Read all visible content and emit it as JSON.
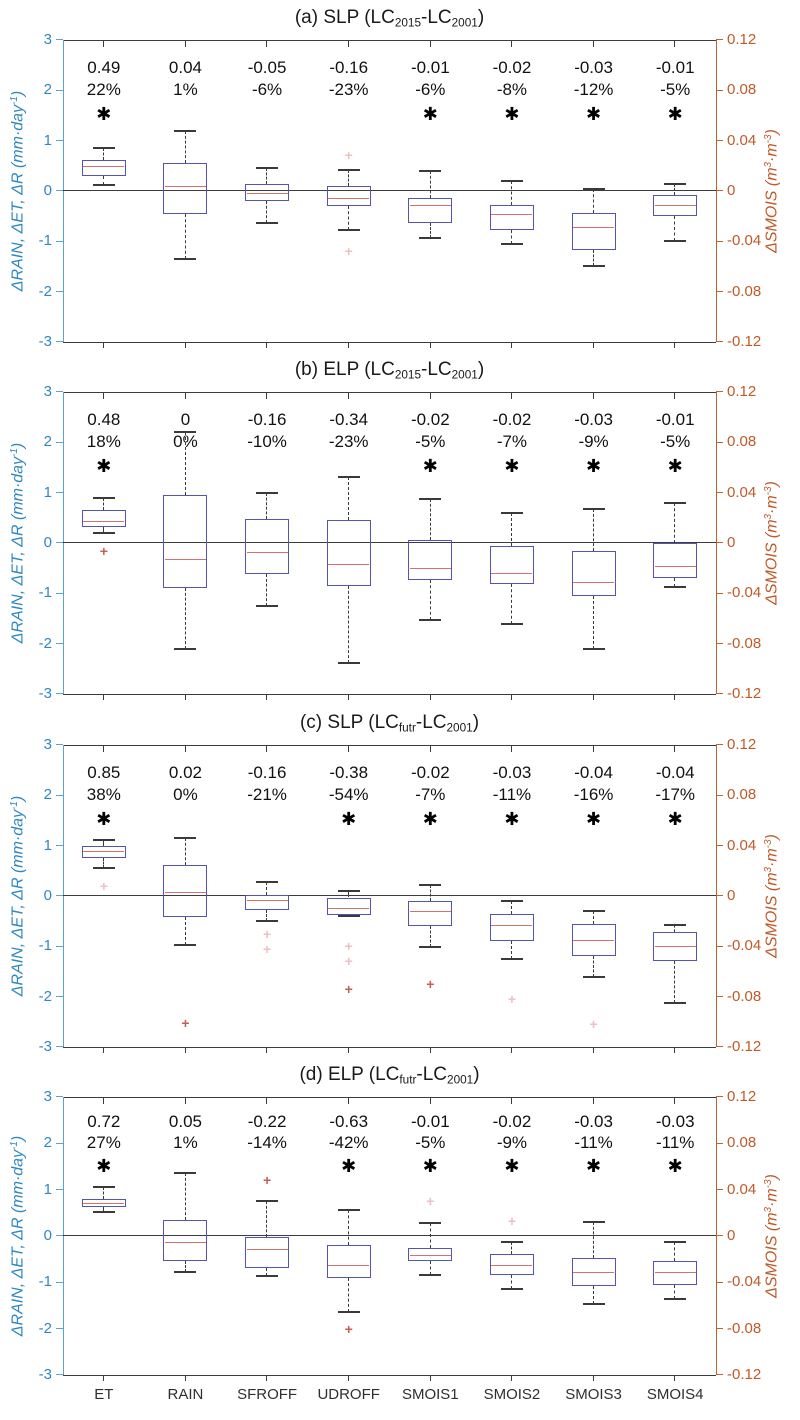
{
  "figure": {
    "categories": [
      "ET",
      "RAIN",
      "SFROFF",
      "UDROFF",
      "SMOIS1",
      "SMOIS2",
      "SMOIS3",
      "SMOIS4"
    ],
    "left_axis": {
      "label_parts": [
        [
          "t",
          "ΔRAIN, ΔET, ΔR (mm·day"
        ],
        [
          "sup",
          "-1"
        ],
        [
          "t",
          ")"
        ]
      ],
      "ticks": [
        "3",
        "2",
        "1",
        "0",
        "-1",
        "-2",
        "-3"
      ],
      "tick_values": [
        3,
        2,
        1,
        0,
        -1,
        -2,
        -3
      ],
      "text_color": "#2f88c0",
      "line_color": "#5ba3d0"
    },
    "right_axis": {
      "label_parts": [
        [
          "t",
          "ΔSMOIS (m"
        ],
        [
          "sup",
          "3"
        ],
        [
          "t",
          "·m"
        ],
        [
          "sup",
          "-3"
        ],
        [
          "t",
          ")"
        ]
      ],
      "ticks": [
        "0.12",
        "0.08",
        "0.04",
        "0",
        "-0.04",
        "-0.08",
        "-0.12"
      ],
      "text_color": "#c05a28",
      "line_color": "#c0622e"
    },
    "colors": {
      "frame": "#3c3c3c",
      "zero_line": "#3c3c3c",
      "box": "#5354b6",
      "median": "#d4716c",
      "whisker": "#3a3a3a",
      "outlier": "#cc5d52",
      "outlier_faint": "#eec0c4",
      "title_text": "#1a1a1a",
      "annotation_text": "#111111",
      "significance_marker": "✱"
    }
  },
  "chart_data": [
    {
      "type": "boxplot",
      "panel": "a",
      "title_parts": [
        [
          "t",
          "(a) SLP (LC"
        ],
        [
          "sub",
          "2015"
        ],
        [
          "t",
          "-LC"
        ],
        [
          "sub",
          "2001"
        ],
        [
          "t",
          ")"
        ]
      ],
      "ylim": [
        -3,
        3
      ],
      "y2lim": [
        -0.12,
        0.12
      ],
      "annotations": {
        "values": [
          "0.49",
          "0.04",
          "-0.05",
          "-0.16",
          "-0.01",
          "-0.02",
          "-0.03",
          "-0.01"
        ],
        "percents": [
          "22%",
          "1%",
          "-6%",
          "-23%",
          "-6%",
          "-8%",
          "-12%",
          "-5%"
        ],
        "significant": [
          true,
          false,
          false,
          false,
          true,
          true,
          true,
          true
        ]
      },
      "boxes": [
        {
          "whislo": 0.12,
          "q1": 0.3,
          "med": 0.47,
          "q3": 0.62,
          "whishi": 0.85,
          "outliers": [],
          "outliers_faint": []
        },
        {
          "whislo": -1.35,
          "q1": -0.45,
          "med": 0.08,
          "q3": 0.55,
          "whishi": 1.2,
          "outliers": [],
          "outliers_faint": []
        },
        {
          "whislo": -0.63,
          "q1": -0.2,
          "med": -0.05,
          "q3": 0.13,
          "whishi": 0.45,
          "outliers": [],
          "outliers_faint": []
        },
        {
          "whislo": -0.78,
          "q1": -0.3,
          "med": -0.15,
          "q3": 0.1,
          "whishi": 0.42,
          "outliers": [],
          "outliers_faint": [
            0.72,
            -1.2
          ]
        },
        {
          "whislo": -0.93,
          "q1": -0.63,
          "med": -0.3,
          "q3": -0.13,
          "whishi": 0.4,
          "outliers": [],
          "outliers_faint": []
        },
        {
          "whislo": -1.05,
          "q1": -0.78,
          "med": -0.48,
          "q3": -0.27,
          "whishi": 0.2,
          "outliers": [],
          "outliers_faint": []
        },
        {
          "whislo": -1.49,
          "q1": -1.18,
          "med": -0.74,
          "q3": -0.43,
          "whishi": 0.04,
          "outliers": [],
          "outliers_faint": []
        },
        {
          "whislo": -0.99,
          "q1": -0.5,
          "med": -0.3,
          "q3": -0.08,
          "whishi": 0.14,
          "outliers": [],
          "outliers_faint": []
        }
      ]
    },
    {
      "type": "boxplot",
      "panel": "b",
      "title_parts": [
        [
          "t",
          "(b) ELP (LC"
        ],
        [
          "sub",
          "2015"
        ],
        [
          "t",
          "-LC"
        ],
        [
          "sub",
          "2001"
        ],
        [
          "t",
          ")"
        ]
      ],
      "ylim": [
        -3,
        3
      ],
      "y2lim": [
        -0.12,
        0.12
      ],
      "annotations": {
        "values": [
          "0.48",
          "0",
          "-0.16",
          "-0.34",
          "-0.02",
          "-0.02",
          "-0.03",
          "-0.01"
        ],
        "percents": [
          "18%",
          "0%",
          "-10%",
          "-23%",
          "-5%",
          "-7%",
          "-9%",
          "-5%"
        ],
        "significant": [
          true,
          false,
          false,
          false,
          true,
          true,
          true,
          true
        ]
      },
      "boxes": [
        {
          "whislo": 0.2,
          "q1": 0.32,
          "med": 0.42,
          "q3": 0.65,
          "whishi": 0.9,
          "outliers": [
            -0.15
          ],
          "outliers_faint": []
        },
        {
          "whislo": -2.1,
          "q1": -0.9,
          "med": -0.33,
          "q3": 0.95,
          "whishi": 2.2,
          "outliers": [],
          "outliers_faint": []
        },
        {
          "whislo": -1.25,
          "q1": -0.62,
          "med": -0.2,
          "q3": 0.48,
          "whishi": 1.0,
          "outliers": [],
          "outliers_faint": []
        },
        {
          "whislo": -2.38,
          "q1": -0.85,
          "med": -0.43,
          "q3": 0.45,
          "whishi": 1.31,
          "outliers": [],
          "outliers_faint": []
        },
        {
          "whislo": -1.53,
          "q1": -0.73,
          "med": -0.52,
          "q3": 0.05,
          "whishi": 0.87,
          "outliers": [],
          "outliers_faint": []
        },
        {
          "whislo": -1.6,
          "q1": -0.82,
          "med": -0.62,
          "q3": -0.05,
          "whishi": 0.6,
          "outliers": [],
          "outliers_faint": []
        },
        {
          "whislo": -2.1,
          "q1": -1.05,
          "med": -0.8,
          "q3": -0.15,
          "whishi": 0.68,
          "outliers": [],
          "outliers_faint": []
        },
        {
          "whislo": -0.88,
          "q1": -0.7,
          "med": -0.48,
          "q3": 0.0,
          "whishi": 0.8,
          "outliers": [],
          "outliers_faint": []
        }
      ]
    },
    {
      "type": "boxplot",
      "panel": "c",
      "title_parts": [
        [
          "t",
          "(c) SLP (LC"
        ],
        [
          "sub",
          "futr"
        ],
        [
          "t",
          "-LC"
        ],
        [
          "sub",
          "2001"
        ],
        [
          "t",
          ")"
        ]
      ],
      "ylim": [
        -3,
        3
      ],
      "y2lim": [
        -0.12,
        0.12
      ],
      "annotations": {
        "values": [
          "0.85",
          "0.02",
          "-0.16",
          "-0.38",
          "-0.02",
          "-0.03",
          "-0.04",
          "-0.04"
        ],
        "percents": [
          "38%",
          "0%",
          "-21%",
          "-54%",
          "-7%",
          "-11%",
          "-16%",
          "-17%"
        ],
        "significant": [
          true,
          false,
          false,
          true,
          true,
          true,
          true,
          true
        ]
      },
      "boxes": [
        {
          "whislo": 0.55,
          "q1": 0.75,
          "med": 0.88,
          "q3": 1.0,
          "whishi": 1.12,
          "outliers": [],
          "outliers_faint": [
            0.2
          ]
        },
        {
          "whislo": -0.97,
          "q1": -0.42,
          "med": 0.07,
          "q3": 0.62,
          "whishi": 1.15,
          "outliers": [
            -2.52
          ],
          "outliers_faint": []
        },
        {
          "whislo": -0.5,
          "q1": -0.28,
          "med": -0.1,
          "q3": 0.02,
          "whishi": 0.27,
          "outliers": [],
          "outliers_faint": [
            -0.75,
            -1.05
          ]
        },
        {
          "whislo": -0.4,
          "q1": -0.38,
          "med": -0.26,
          "q3": -0.03,
          "whishi": 0.1,
          "outliers": [
            -1.85
          ],
          "outliers_faint": [
            -1.0,
            -1.3
          ]
        },
        {
          "whislo": -1.02,
          "q1": -0.6,
          "med": -0.32,
          "q3": -0.1,
          "whishi": 0.22,
          "outliers": [
            -1.75
          ],
          "outliers_faint": []
        },
        {
          "whislo": -1.25,
          "q1": -0.9,
          "med": -0.6,
          "q3": -0.35,
          "whishi": -0.1,
          "outliers": [],
          "outliers_faint": [
            -2.05
          ]
        },
        {
          "whislo": -1.6,
          "q1": -1.2,
          "med": -0.9,
          "q3": -0.55,
          "whishi": -0.3,
          "outliers": [],
          "outliers_faint": [
            -2.55
          ]
        },
        {
          "whislo": -2.12,
          "q1": -1.3,
          "med": -1.02,
          "q3": -0.72,
          "whishi": -0.58,
          "outliers": [],
          "outliers_faint": []
        }
      ]
    },
    {
      "type": "boxplot",
      "panel": "d",
      "title_parts": [
        [
          "t",
          "(d) ELP (LC"
        ],
        [
          "sub",
          "futr"
        ],
        [
          "t",
          "-LC"
        ],
        [
          "sub",
          "2001"
        ],
        [
          "t",
          ")"
        ]
      ],
      "ylim": [
        -3,
        3
      ],
      "y2lim": [
        -0.12,
        0.12
      ],
      "annotations": {
        "values": [
          "0.72",
          "0.05",
          "-0.22",
          "-0.63",
          "-0.01",
          "-0.02",
          "-0.03",
          "-0.03"
        ],
        "percents": [
          "27%",
          "1%",
          "-14%",
          "-42%",
          "-5%",
          "-9%",
          "-11%",
          "-11%"
        ],
        "significant": [
          true,
          false,
          false,
          true,
          true,
          true,
          true,
          true
        ]
      },
      "boxes": [
        {
          "whislo": 0.52,
          "q1": 0.62,
          "med": 0.7,
          "q3": 0.8,
          "whishi": 1.05,
          "outliers": [],
          "outliers_faint": []
        },
        {
          "whislo": -0.78,
          "q1": -0.55,
          "med": -0.15,
          "q3": 0.35,
          "whishi": 1.35,
          "outliers": [],
          "outliers_faint": []
        },
        {
          "whislo": -0.87,
          "q1": -0.7,
          "med": -0.3,
          "q3": -0.02,
          "whishi": 0.75,
          "outliers": [
            1.2
          ],
          "outliers_faint": []
        },
        {
          "whislo": -1.65,
          "q1": -0.9,
          "med": -0.65,
          "q3": -0.2,
          "whishi": 0.57,
          "outliers": [
            -2.0
          ],
          "outliers_faint": []
        },
        {
          "whislo": -0.85,
          "q1": -0.55,
          "med": -0.42,
          "q3": -0.25,
          "whishi": 0.27,
          "outliers": [],
          "outliers_faint": [
            0.75
          ]
        },
        {
          "whislo": -1.15,
          "q1": -0.85,
          "med": -0.65,
          "q3": -0.38,
          "whishi": -0.12,
          "outliers": [],
          "outliers_faint": [
            0.32
          ]
        },
        {
          "whislo": -1.47,
          "q1": -1.07,
          "med": -0.8,
          "q3": -0.48,
          "whishi": 0.3,
          "outliers": [],
          "outliers_faint": []
        },
        {
          "whislo": -1.35,
          "q1": -1.05,
          "med": -0.8,
          "q3": -0.55,
          "whishi": -0.12,
          "outliers": [],
          "outliers_faint": []
        }
      ]
    }
  ]
}
